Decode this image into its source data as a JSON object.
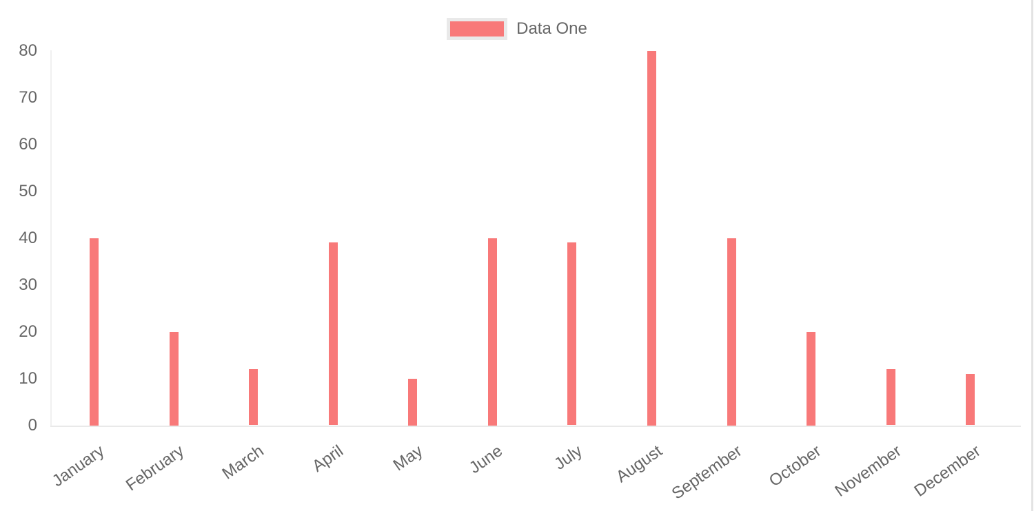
{
  "chart_data": {
    "type": "bar",
    "title": "",
    "xlabel": "",
    "ylabel": "",
    "categories": [
      "January",
      "February",
      "March",
      "April",
      "May",
      "June",
      "July",
      "August",
      "September",
      "October",
      "November",
      "December"
    ],
    "series": [
      {
        "name": "Data One",
        "color": "#f87979",
        "values": [
          40,
          20,
          12,
          39,
          10,
          40,
          39,
          80,
          40,
          20,
          12,
          11
        ]
      }
    ],
    "ylim": [
      0,
      80
    ],
    "y_ticks": [
      0,
      10,
      20,
      30,
      40,
      50,
      60,
      70,
      80
    ],
    "grid": "off",
    "legend_position": "top",
    "x_label_rotation_deg": -35
  },
  "legend": {
    "label": "Data One",
    "swatch_color": "#f87979",
    "swatch_border_color": "#e9e9e9"
  },
  "style_colors": {
    "bar": "#f87979",
    "tick_text": "#666666",
    "axis_line": "#e9e9e9",
    "right_border": "#e3e3e3",
    "background": "#ffffff"
  }
}
